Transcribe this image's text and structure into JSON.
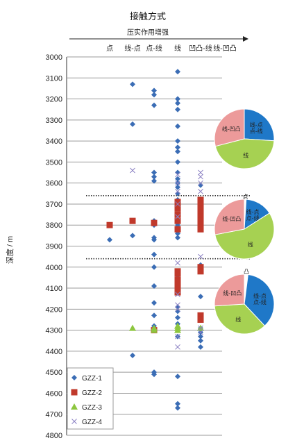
{
  "chart_data": {
    "type": "scatter",
    "title": "接触方式",
    "subtitle": "压实作用增强",
    "ylabel": "深度 / m",
    "ylim": [
      3000,
      4800
    ],
    "yticks": [
      3000,
      3100,
      3200,
      3300,
      3400,
      3500,
      3600,
      3700,
      3800,
      3900,
      4000,
      4100,
      4200,
      4300,
      4400,
      4500,
      4600,
      4700,
      4800
    ],
    "categories": [
      "点",
      "线-点",
      "点-线",
      "线",
      "凹凸-线",
      "线-凹凸"
    ],
    "colors": {
      "GZZ-1": "#3b6db5",
      "GZZ-2": "#c0392b",
      "GZZ-3": "#8dc63f",
      "GZZ-4": "#8a7fc2",
      "pie_blue": "#1f78c8",
      "pie_green": "#a6d152",
      "pie_pink": "#ec9a9a",
      "pie_white": "#ffffff"
    },
    "series": [
      {
        "name": "GZZ-1",
        "marker": "diamond",
        "points": [
          [
            0,
            3870
          ],
          [
            1,
            3130
          ],
          [
            1,
            3320
          ],
          [
            1,
            3850
          ],
          [
            1,
            4420
          ],
          [
            2,
            3160
          ],
          [
            2,
            3180
          ],
          [
            2,
            3230
          ],
          [
            2,
            3550
          ],
          [
            2,
            3570
          ],
          [
            2,
            3590
          ],
          [
            2,
            3780
          ],
          [
            2,
            3800
          ],
          [
            2,
            3860
          ],
          [
            2,
            3870
          ],
          [
            2,
            3940
          ],
          [
            2,
            4000
          ],
          [
            2,
            4090
          ],
          [
            2,
            4170
          ],
          [
            2,
            4230
          ],
          [
            2,
            4280
          ],
          [
            2,
            4500
          ],
          [
            2,
            4510
          ],
          [
            3,
            3070
          ],
          [
            3,
            3200
          ],
          [
            3,
            3220
          ],
          [
            3,
            3250
          ],
          [
            3,
            3330
          ],
          [
            3,
            3400
          ],
          [
            3,
            3430
          ],
          [
            3,
            3450
          ],
          [
            3,
            3500
          ],
          [
            3,
            3550
          ],
          [
            3,
            3580
          ],
          [
            3,
            3600
          ],
          [
            3,
            3620
          ],
          [
            3,
            3650
          ],
          [
            3,
            3680
          ],
          [
            3,
            3700
          ],
          [
            3,
            3720
          ],
          [
            3,
            3750
          ],
          [
            3,
            3780
          ],
          [
            3,
            3800
          ],
          [
            3,
            3840
          ],
          [
            3,
            3860
          ],
          [
            3,
            4020
          ],
          [
            3,
            4050
          ],
          [
            3,
            4080
          ],
          [
            3,
            4100
          ],
          [
            3,
            4120
          ],
          [
            3,
            4190
          ],
          [
            3,
            4210
          ],
          [
            3,
            4240
          ],
          [
            3,
            4270
          ],
          [
            3,
            4300
          ],
          [
            3,
            4330
          ],
          [
            3,
            4520
          ],
          [
            3,
            4650
          ],
          [
            3,
            4670
          ],
          [
            4,
            3610
          ],
          [
            4,
            3780
          ],
          [
            4,
            3990
          ],
          [
            4,
            4140
          ],
          [
            4,
            4250
          ],
          [
            4,
            4290
          ],
          [
            4,
            4310
          ],
          [
            4,
            4330
          ],
          [
            4,
            4350
          ],
          [
            4,
            4380
          ]
        ]
      },
      {
        "name": "GZZ-2",
        "marker": "square",
        "points": [
          [
            0,
            3800
          ],
          [
            1,
            3780
          ],
          [
            2,
            3790
          ],
          [
            2,
            4300
          ],
          [
            3,
            3690
          ],
          [
            3,
            3710
          ],
          [
            3,
            3720
          ],
          [
            3,
            3750
          ],
          [
            3,
            3780
          ],
          [
            3,
            3820
          ],
          [
            3,
            4020
          ],
          [
            3,
            4030
          ],
          [
            3,
            4060
          ],
          [
            3,
            4070
          ],
          [
            3,
            4090
          ],
          [
            3,
            4100
          ],
          [
            3,
            4120
          ],
          [
            4,
            3680
          ],
          [
            4,
            3700
          ],
          [
            4,
            3720
          ],
          [
            4,
            3740
          ],
          [
            4,
            3760
          ],
          [
            4,
            3780
          ],
          [
            4,
            3800
          ],
          [
            4,
            3820
          ],
          [
            4,
            4000
          ],
          [
            4,
            4020
          ],
          [
            4,
            4230
          ],
          [
            4,
            4250
          ]
        ]
      },
      {
        "name": "GZZ-3",
        "marker": "triangle",
        "points": [
          [
            1,
            4290
          ],
          [
            2,
            4290
          ],
          [
            2,
            4300
          ],
          [
            3,
            4280
          ],
          [
            3,
            4290
          ],
          [
            3,
            4300
          ],
          [
            4,
            4290
          ]
        ]
      },
      {
        "name": "GZZ-4",
        "marker": "x",
        "points": [
          [
            1,
            3540
          ],
          [
            3,
            3560
          ],
          [
            3,
            3600
          ],
          [
            3,
            3640
          ],
          [
            3,
            3700
          ],
          [
            3,
            3760
          ],
          [
            3,
            3980
          ],
          [
            3,
            4130
          ],
          [
            3,
            4180
          ],
          [
            3,
            4200
          ],
          [
            3,
            4330
          ],
          [
            3,
            4380
          ],
          [
            4,
            3550
          ],
          [
            4,
            3570
          ],
          [
            4,
            3600
          ],
          [
            4,
            3640
          ],
          [
            4,
            3950
          ],
          [
            4,
            4290
          ],
          [
            4,
            4310
          ]
        ]
      }
    ],
    "dashed_lines": [
      3660,
      3960
    ],
    "pies": [
      {
        "slices": [
          {
            "label": "线-点\n点-线",
            "value": 26,
            "color": "#1f78c8"
          },
          {
            "label": "线",
            "value": 45,
            "color": "#a6d152"
          },
          {
            "label": "线-凹凸",
            "value": 29,
            "color": "#ec9a9a"
          }
        ]
      },
      {
        "slices": [
          {
            "label": "点",
            "value": 1,
            "color": "#ffffff"
          },
          {
            "label": "线-点\n点-线",
            "value": 15,
            "color": "#1f78c8"
          },
          {
            "label": "线",
            "value": 56,
            "color": "#a6d152"
          },
          {
            "label": "线-凹凸",
            "value": 28,
            "color": "#ec9a9a"
          }
        ]
      },
      {
        "slices": [
          {
            "label": "凸",
            "value": 2,
            "color": "#ffffff"
          },
          {
            "label": "线-点\n点-线",
            "value": 36,
            "color": "#1f78c8"
          },
          {
            "label": "线",
            "value": 36,
            "color": "#a6d152"
          },
          {
            "label": "线-凹凸",
            "value": 26,
            "color": "#ec9a9a"
          }
        ]
      }
    ],
    "legend": {
      "placement": "bottom-left",
      "entries": [
        "GZZ-1",
        "GZZ-2",
        "GZZ-3",
        "GZZ-4"
      ]
    }
  }
}
